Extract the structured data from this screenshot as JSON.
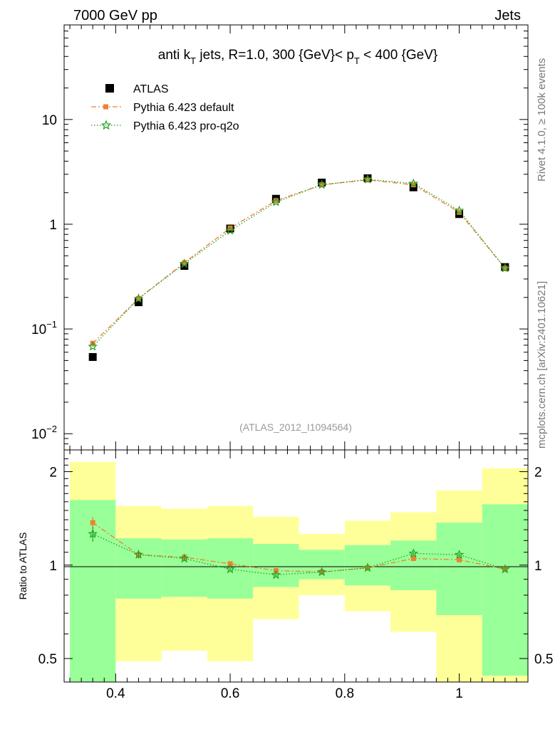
{
  "header": {
    "left": "7000 GeV pp",
    "right": "Jets"
  },
  "side_labels": {
    "rivet": "Rivet 4.1.0, ≥ 100k events",
    "mcplots": "mcplots.cern.ch [arXiv:2401.10621]"
  },
  "colors": {
    "atlas": "#000000",
    "default": "#f08030",
    "proq2o": "#22a022",
    "band_inner": "#99ff99",
    "band_outer": "#ffff99"
  },
  "chart_data": [
    {
      "type": "scatter",
      "title": "anti k_T jets, R=1.0,  300 {GeV}< p_T < 400 {GeV}",
      "title_parts": {
        "a": "anti k",
        "a_sub": "T",
        "b": " jets, R=1.0,  300 {GeV}< p",
        "b_sub": "T",
        "c": " < 400 {GeV}"
      },
      "watermark": "(ATLAS_2012_I1094564)",
      "yscale": "log",
      "ylim": [
        0.007,
        80
      ],
      "xlim": [
        0.31,
        1.12
      ],
      "ytick_labels": [
        {
          "value": 0.01,
          "base": "10",
          "exp": "−2"
        },
        {
          "value": 0.1,
          "base": "10",
          "exp": "−1"
        },
        {
          "value": 1,
          "base": "1",
          "exp": ""
        },
        {
          "value": 10,
          "base": "10",
          "exp": ""
        }
      ],
      "legend_position": "top-left",
      "x": [
        0.36,
        0.44,
        0.52,
        0.6,
        0.68,
        0.76,
        0.84,
        0.92,
        1.0,
        1.08
      ],
      "series": [
        {
          "name": "ATLAS",
          "marker": "square",
          "values": [
            0.054,
            0.18,
            0.4,
            0.91,
            1.75,
            2.5,
            2.75,
            2.25,
            1.25,
            0.39
          ]
        },
        {
          "name": "Pythia 6.423 default",
          "marker": "square-small",
          "line": "dashdot",
          "values": [
            0.073,
            0.195,
            0.43,
            0.92,
            1.68,
            2.38,
            2.65,
            2.38,
            1.3,
            0.38
          ]
        },
        {
          "name": "Pythia 6.423 pro-q2o",
          "marker": "star",
          "line": "dotted",
          "values": [
            0.068,
            0.195,
            0.42,
            0.87,
            1.63,
            2.38,
            2.68,
            2.45,
            1.35,
            0.38
          ]
        }
      ]
    },
    {
      "type": "scatter",
      "ylabel": "Ratio to ATLAS",
      "yscale": "log",
      "ylim": [
        0.42,
        2.35
      ],
      "xlim": [
        0.31,
        1.12
      ],
      "xtick_labels": [
        "0.4",
        "0.6",
        "0.8",
        "1"
      ],
      "ytick_labels": [
        "0.5",
        "1",
        "2"
      ],
      "bins": [
        [
          0.32,
          0.4
        ],
        [
          0.4,
          0.48
        ],
        [
          0.48,
          0.56
        ],
        [
          0.56,
          0.64
        ],
        [
          0.64,
          0.72
        ],
        [
          0.72,
          0.8
        ],
        [
          0.8,
          0.88
        ],
        [
          0.88,
          0.96
        ],
        [
          0.96,
          1.04
        ],
        [
          1.04,
          1.12
        ]
      ],
      "band_inner": [
        [
          0.4,
          1.62
        ],
        [
          0.78,
          1.22
        ],
        [
          0.79,
          1.21
        ],
        [
          0.78,
          1.22
        ],
        [
          0.85,
          1.17
        ],
        [
          0.9,
          1.12
        ],
        [
          0.86,
          1.16
        ],
        [
          0.83,
          1.2
        ],
        [
          0.69,
          1.37
        ],
        [
          0.44,
          1.57
        ]
      ],
      "band_outer": [
        [
          0.4,
          2.15
        ],
        [
          0.49,
          1.55
        ],
        [
          0.53,
          1.52
        ],
        [
          0.49,
          1.55
        ],
        [
          0.67,
          1.43
        ],
        [
          0.8,
          1.26
        ],
        [
          0.71,
          1.39
        ],
        [
          0.61,
          1.48
        ],
        [
          0.4,
          1.74
        ],
        [
          0.4,
          2.05
        ]
      ],
      "x": [
        0.36,
        0.44,
        0.52,
        0.6,
        0.68,
        0.76,
        0.84,
        0.92,
        1.0,
        1.08
      ],
      "series": [
        {
          "name": "Pythia 6.423 default",
          "values": [
            1.37,
            1.08,
            1.06,
            1.01,
            0.96,
            0.95,
            0.98,
            1.05,
            1.04,
            0.97
          ],
          "errors": [
            0.06,
            0.03,
            0.02,
            0.01,
            0.01,
            0.01,
            0.01,
            0.01,
            0.01,
            0.01
          ]
        },
        {
          "name": "Pythia 6.423 pro-q2o",
          "values": [
            1.26,
            1.08,
            1.05,
            0.97,
            0.93,
            0.95,
            0.98,
            1.09,
            1.08,
            0.97
          ],
          "errors": [
            0.07,
            0.03,
            0.02,
            0.01,
            0.01,
            0.01,
            0.01,
            0.01,
            0.01,
            0.01
          ]
        }
      ]
    }
  ]
}
